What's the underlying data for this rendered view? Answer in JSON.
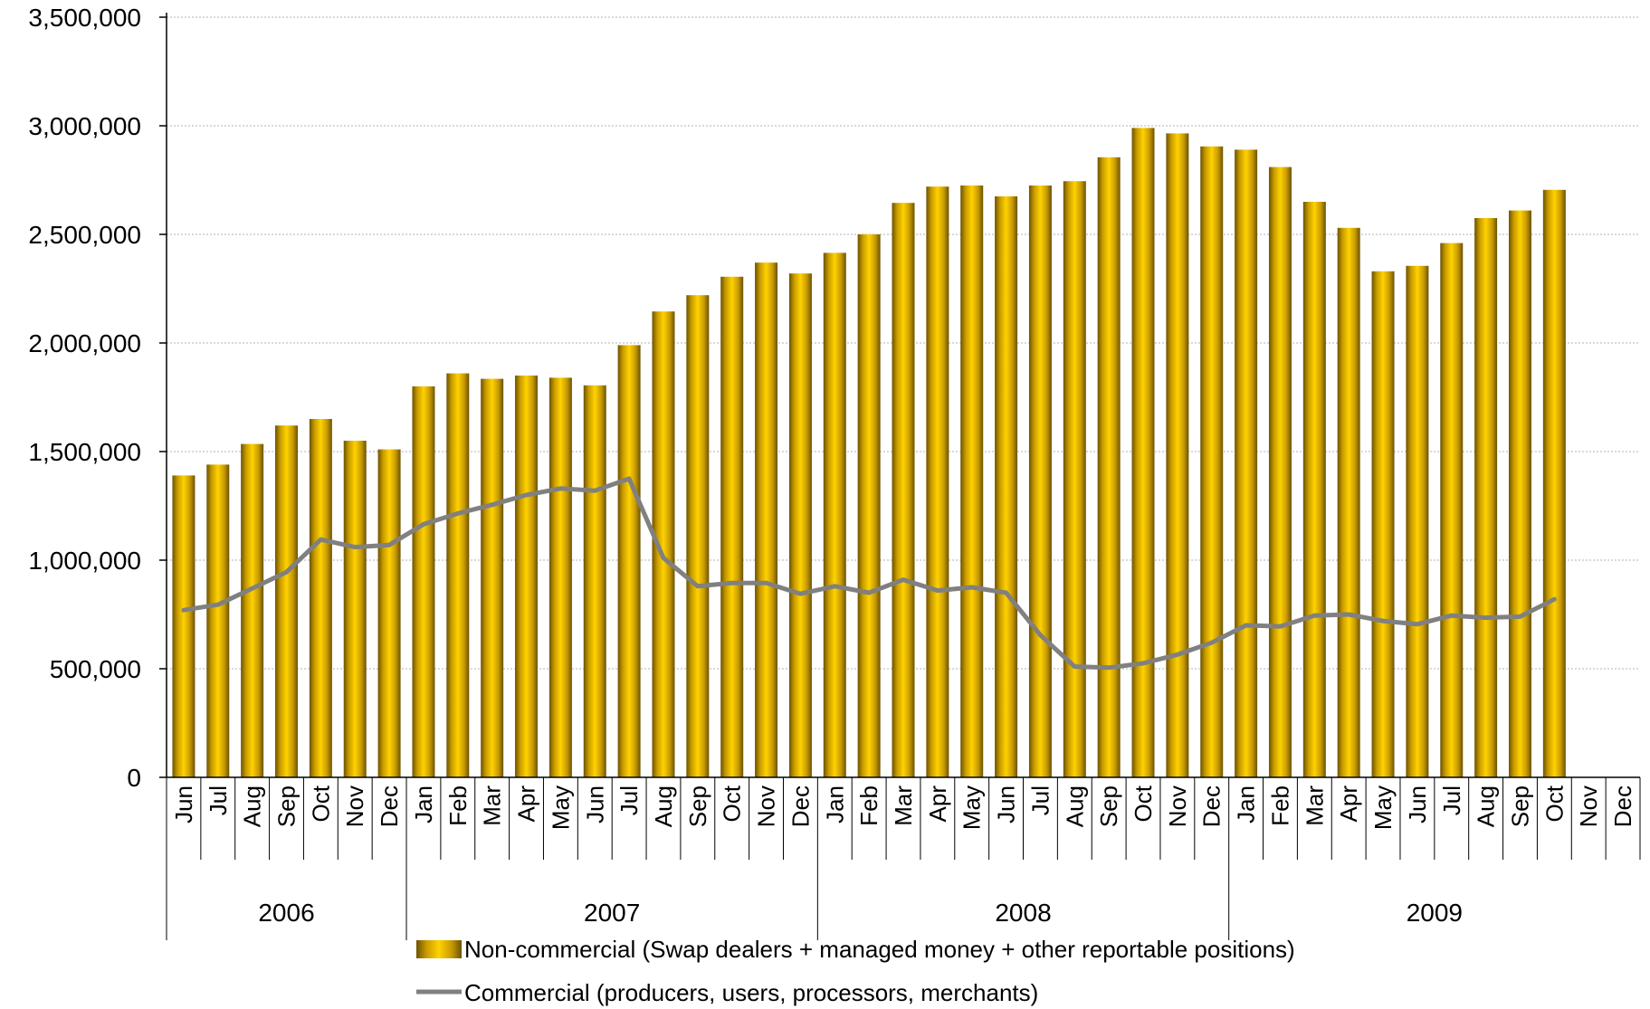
{
  "chart_data": {
    "type": "bar",
    "categories": [
      "Jun",
      "Jul",
      "Aug",
      "Sep",
      "Oct",
      "Nov",
      "Dec",
      "Jan",
      "Feb",
      "Mar",
      "Apr",
      "May",
      "Jun",
      "Jul",
      "Aug",
      "Sep",
      "Oct",
      "Nov",
      "Dec",
      "Jan",
      "Feb",
      "Mar",
      "Apr",
      "May",
      "Jun",
      "Jul",
      "Aug",
      "Sep",
      "Oct",
      "Nov",
      "Dec",
      "Jan",
      "Feb",
      "Mar",
      "Apr",
      "May",
      "Jun",
      "Jul",
      "Aug",
      "Sep",
      "Oct",
      "Nov",
      "Dec"
    ],
    "years": [
      {
        "label": "2006",
        "count": 7
      },
      {
        "label": "2007",
        "count": 12
      },
      {
        "label": "2008",
        "count": 12
      },
      {
        "label": "2009",
        "count": 12
      }
    ],
    "series": [
      {
        "name": "Non-commercial (Swap dealers + managed money + other reportable positions)",
        "kind": "bar",
        "color": "#e6b800",
        "values": [
          1390000,
          1440000,
          1535000,
          1620000,
          1650000,
          1550000,
          1510000,
          1800000,
          1860000,
          1835000,
          1850000,
          1840000,
          1805000,
          1990000,
          2145000,
          2220000,
          2305000,
          2370000,
          2320000,
          2415000,
          2500000,
          2645000,
          2720000,
          2725000,
          2675000,
          2725000,
          2745000,
          2855000,
          2990000,
          2965000,
          2905000,
          2890000,
          2810000,
          2650000,
          2530000,
          2330000,
          2355000,
          2460000,
          2575000,
          2610000,
          2705000,
          null,
          null
        ]
      },
      {
        "name": "Commercial (producers, users, processors, merchants)",
        "kind": "line",
        "color": "#808080",
        "values": [
          770000,
          795000,
          870000,
          945000,
          1095000,
          1060000,
          1070000,
          1165000,
          1215000,
          1255000,
          1300000,
          1330000,
          1320000,
          1375000,
          1010000,
          880000,
          895000,
          895000,
          845000,
          880000,
          850000,
          910000,
          860000,
          875000,
          850000,
          655000,
          510000,
          505000,
          525000,
          565000,
          620000,
          700000,
          695000,
          745000,
          750000,
          720000,
          705000,
          745000,
          735000,
          740000,
          820000,
          null,
          null
        ]
      }
    ],
    "yticks": [
      "0",
      "500,000",
      "1,000,000",
      "1,500,000",
      "2,000,000",
      "2,500,000",
      "3,000,000",
      "3,500,000"
    ],
    "ylim": [
      0,
      3500000
    ],
    "grid": true,
    "legend_position": "bottom"
  }
}
